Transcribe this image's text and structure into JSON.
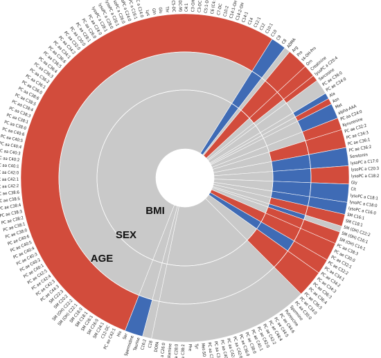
{
  "chart_data": {
    "type": "sunburst",
    "rings": [
      "BMI",
      "SEX",
      "AGE"
    ],
    "colors": {
      "positive": "#d24c3c",
      "negative": "#3f6bb5",
      "none": "#c9c9c9"
    },
    "metabolites": [
      "Taurine",
      "Spermidine",
      "Ser",
      "His",
      "PC ae C42:1",
      "C12-DC",
      "SM C24:1",
      "SM C26:0",
      "SM C26:1",
      "SM C18:1",
      "SM C18:0",
      "SM (OH) C22:1",
      "SM (OH) C22:2",
      "SM C20:2",
      "SM C22:3",
      "PC ae C44:3",
      "PC ae C42:3",
      "PC ae C42:4",
      "PC ae C42:5",
      "PC ae C40:1",
      "PC ae C40:2",
      "PC ae C40:3",
      "PC ae C40:4",
      "PC ae C40:5",
      "PC ae C40:6",
      "PC ae C38:0",
      "PC ae C38:1",
      "PC ae C38:2",
      "PC ae C38:3",
      "PC ae C38:4",
      "PC ae C38:5",
      "PC ae C38:6",
      "PC aa C42:2",
      "PC aa C42:1",
      "PC aa C42:0",
      "PC aa C40:1",
      "PC aa C40:2",
      "PC aa C40:3",
      "PC aa C40:4",
      "PC aa C40:5",
      "PC aa C40:6",
      "PC aa C38:0",
      "PC aa C38:1",
      "PC aa C38:3",
      "PC aa C38:4",
      "PC aa C38:5",
      "PC aa C38:6",
      "PC aa C36:0",
      "PC aa C36:1",
      "PC aa C36:2",
      "PC aa C36:3",
      "PC aa C36:4",
      "PC aa C36:5",
      "PC aa C36:6",
      "PC aa C34:1",
      "PC aa C34:2",
      "PC aa C32:0",
      "PC aa C30:0",
      "PC aa C28:1",
      "PC aa C26:0",
      "PC aa C24:0",
      "lysoPC a C28:1",
      "lysoPC a C28:0",
      "lysoPC a C26:1",
      "lysoPC a C26:0",
      "lysoPC a C24:0",
      "lysoPC a C16:1",
      "lysoPC a C14:0",
      "Lys",
      "Gln",
      "Glu",
      "Thr",
      "C5-DC",
      "C5-OH (C3-DC-M)",
      "C4:1",
      "C3-OH",
      "C3-DC (C4-OH)",
      "C5:1-DC",
      "C6 (C4:1-DC)",
      "C7-DC",
      "C10:2",
      "C14:1-OH",
      "C14:2-OH",
      "C14:1",
      "C14",
      "C12:1",
      "C12",
      "C10:1",
      "C10",
      "C9",
      "C8",
      "ADMA",
      "Arg",
      "Pro",
      "t4-OH-Pro",
      "Orn",
      "Creatinine",
      "lysoPC a C20:4",
      "Sarcosine",
      "PC ae C36:0",
      "PC ae C34:0",
      "Ala",
      "Asn",
      "Met",
      "alpha-AAA",
      "PC aa C24:0",
      "Kynurenine",
      "PC ae C32:2",
      "PC ae C34:3",
      "PC ae C36:1",
      "PC ae C36:2",
      "Serotonin",
      "lysoPC a C17:0",
      "lysoPC a C20:3",
      "lysoPC a C18:2",
      "Gly",
      "Cit",
      "lysoPC a C18:1",
      "lysoPC a C18:0",
      "lysoPC a C16:0",
      "SM C16:1",
      "SM C18:1",
      "SM (OH) C22:2",
      "SM (OH) C16:1",
      "SM (OH) C14:1",
      "PC aa C38:3",
      "PC ae C30:0",
      "PC ae C32:1",
      "PC ae C32:2",
      "PC ae C34:1",
      "PC ae C34:2",
      "PC ae C34:3",
      "PC ae C36:3",
      "PC ae C36:4",
      "PC ae C36:5",
      "PC ae C34:0",
      "PC aa C30:0",
      "Spermine",
      "Putrescine",
      "PC ae C44:6",
      "PC ae C44:5",
      "PC ae C44:4",
      "PC ae C42:2",
      "PC ae C42:0",
      "PC ae C40:1",
      "PC ae C38:0",
      "PC ae C36:0",
      "PC aa C42:6",
      "PC aa C42:5",
      "PC aa C40:2",
      "PC aa C36:0",
      "PC aa C32:3",
      "Met-SO",
      "Tyr",
      "Phe",
      "PC ae C38:2",
      "lysoPC a C28:0",
      "Histamine",
      "lysoPC a C26:0",
      "DOPA",
      "C18",
      "C16:2"
    ],
    "segments": [
      {
        "start": 0.0,
        "end": 3.0,
        "bmi": "none",
        "sex": "none",
        "age": "negative"
      },
      {
        "start": 3.0,
        "end": 92.0,
        "bmi": "none",
        "sex": "none",
        "age": "positive"
      },
      {
        "start": 92.0,
        "end": 94.5,
        "bmi": "negative",
        "sex": "negative",
        "age": "negative"
      },
      {
        "start": 94.5,
        "end": 95.5,
        "bmi": "none",
        "sex": "none",
        "age": "none"
      },
      {
        "start": 95.5,
        "end": 99.0,
        "bmi": "positive",
        "sex": "positive",
        "age": "positive"
      },
      {
        "start": 99.0,
        "end": 101.0,
        "bmi": "none",
        "sex": "positive",
        "age": "positive"
      },
      {
        "start": 101.0,
        "end": 102.0,
        "bmi": "none",
        "sex": "none",
        "age": "positive"
      },
      {
        "start": 102.0,
        "end": 104.5,
        "bmi": "none",
        "sex": "none",
        "age": "none"
      },
      {
        "start": 104.5,
        "end": 105.5,
        "bmi": "none",
        "sex": "none",
        "age": "negative"
      },
      {
        "start": 105.5,
        "end": 106.5,
        "bmi": "none",
        "sex": "none",
        "age": "positive"
      },
      {
        "start": 106.5,
        "end": 109.0,
        "bmi": "none",
        "sex": "none",
        "age": "negative"
      },
      {
        "start": 109.0,
        "end": 111.0,
        "bmi": "none",
        "sex": "none",
        "age": "positive"
      },
      {
        "start": 111.0,
        "end": 114.0,
        "bmi": "none",
        "sex": "positive",
        "age": "positive"
      },
      {
        "start": 114.0,
        "end": 117.0,
        "bmi": "none",
        "sex": "negative",
        "age": "negative"
      },
      {
        "start": 117.0,
        "end": 120.0,
        "bmi": "none",
        "sex": "negative",
        "age": "positive"
      },
      {
        "start": 120.0,
        "end": 123.0,
        "bmi": "none",
        "sex": "negative",
        "age": "negative"
      },
      {
        "start": 123.0,
        "end": 125.0,
        "bmi": "none",
        "sex": "negative",
        "age": "negative"
      },
      {
        "start": 125.0,
        "end": 127.0,
        "bmi": "none",
        "sex": "positive",
        "age": "positive"
      },
      {
        "start": 127.0,
        "end": 128.0,
        "bmi": "none",
        "sex": "negative",
        "age": "none"
      },
      {
        "start": 128.0,
        "end": 130.0,
        "bmi": "none",
        "sex": "positive",
        "age": "positive"
      },
      {
        "start": 130.0,
        "end": 133.0,
        "bmi": "positive",
        "sex": "positive",
        "age": "positive"
      },
      {
        "start": 133.0,
        "end": 135.5,
        "bmi": "negative",
        "sex": "negative",
        "age": "positive"
      },
      {
        "start": 135.5,
        "end": 140.0,
        "bmi": "none",
        "sex": "positive",
        "age": "positive"
      },
      {
        "start": 140.0,
        "end": 166.5,
        "bmi": "none",
        "sex": "none",
        "age": "none"
      },
      {
        "start": 166.5,
        "end": 168.0,
        "bmi": "none",
        "sex": "none",
        "age": "none"
      }
    ],
    "total": 168
  }
}
